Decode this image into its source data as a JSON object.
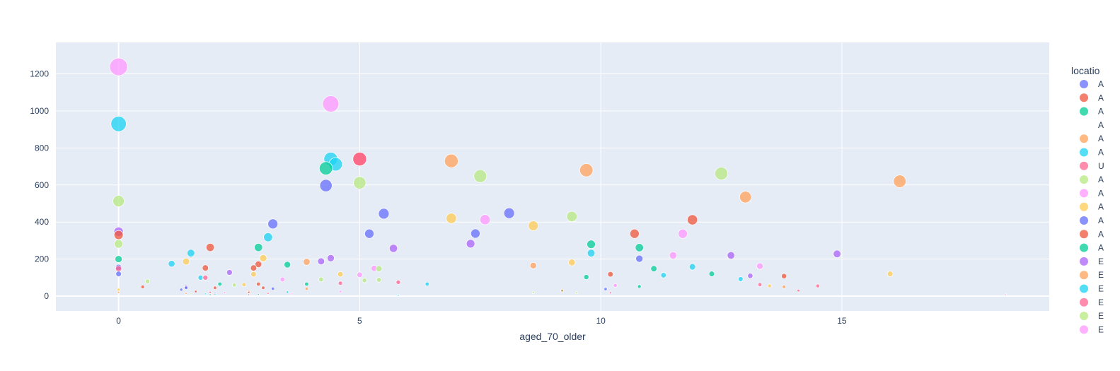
{
  "chart_data": {
    "type": "scatter",
    "xlabel": "aged_70_older",
    "ylabel": "",
    "xlim": [
      -1.3,
      19.3
    ],
    "ylim": [
      -80,
      1370
    ],
    "x_ticks": [
      0,
      5,
      10,
      15
    ],
    "y_ticks": [
      0,
      200,
      400,
      600,
      800,
      1000,
      1200
    ],
    "grid": true,
    "plot_background": "#e5ecf6",
    "legend_title": "locatio",
    "legend_placement": "right",
    "series": [
      {
        "name": "A",
        "color": "#636efa",
        "points": [
          [
            0,
            120
          ],
          [
            1.4,
            45
          ],
          [
            3.2,
            390
          ],
          [
            4.3,
            597
          ],
          [
            5.2,
            337
          ],
          [
            5.5,
            445
          ],
          [
            7.4,
            338
          ],
          [
            8.1,
            448
          ],
          [
            10.8,
            202
          ],
          [
            10.1,
            38
          ]
        ]
      },
      {
        "name": "A",
        "color": "#ef553b",
        "points": [
          [
            0,
            330
          ],
          [
            1.9,
            263
          ],
          [
            1.8,
            152
          ],
          [
            2.9,
            172
          ],
          [
            2.8,
            152
          ],
          [
            5.0,
            740
          ],
          [
            10.7,
            337
          ],
          [
            11.9,
            412
          ],
          [
            10.2,
            118
          ],
          [
            13.8,
            108
          ],
          [
            0.5,
            50
          ],
          [
            2.9,
            65
          ]
        ]
      },
      {
        "name": "A",
        "color": "#00cc96",
        "points": [
          [
            0,
            200
          ],
          [
            2.9,
            263
          ],
          [
            3.5,
            170
          ],
          [
            4.3,
            690
          ],
          [
            9.8,
            280
          ],
          [
            10.8,
            262
          ],
          [
            11.1,
            148
          ],
          [
            12.3,
            120
          ],
          [
            9.7,
            103
          ],
          [
            2.1,
            65
          ],
          [
            3.9,
            65
          ]
        ]
      },
      {
        "name": "A",
        "color": "#ffffff",
        "points": []
      },
      {
        "name": "A",
        "color": "#ffa15a",
        "points": [
          [
            0,
            20
          ],
          [
            3.9,
            185
          ],
          [
            6.9,
            730
          ],
          [
            9.7,
            680
          ],
          [
            8.6,
            165
          ],
          [
            13.0,
            535
          ],
          [
            16.2,
            620
          ],
          [
            13.8,
            50
          ]
        ]
      },
      {
        "name": "A",
        "color": "#19d3f3",
        "points": [
          [
            0,
            930
          ],
          [
            1.1,
            175
          ],
          [
            1.5,
            232
          ],
          [
            3.1,
            318
          ],
          [
            4.4,
            740
          ],
          [
            4.5,
            712
          ],
          [
            9.8,
            232
          ],
          [
            11.3,
            113
          ],
          [
            11.9,
            158
          ],
          [
            12.9,
            92
          ],
          [
            6.4,
            65
          ],
          [
            1.7,
            100
          ]
        ]
      },
      {
        "name": "U",
        "color": "#ff6692",
        "points": [
          [
            0,
            148
          ],
          [
            1.8,
            100
          ],
          [
            5.0,
            740
          ],
          [
            5.8,
            75
          ],
          [
            4.6,
            70
          ],
          [
            13.3,
            62
          ],
          [
            14.5,
            55
          ],
          [
            14.1,
            30
          ]
        ]
      },
      {
        "name": "A",
        "color": "#b6e880",
        "points": [
          [
            0,
            282
          ],
          [
            0,
            513
          ],
          [
            5.0,
            612
          ],
          [
            7.5,
            648
          ],
          [
            9.4,
            430
          ],
          [
            12.5,
            662
          ],
          [
            0.6,
            80
          ],
          [
            4.2,
            90
          ],
          [
            5.1,
            85
          ],
          [
            5.4,
            88
          ],
          [
            5.4,
            148
          ]
        ]
      },
      {
        "name": "A",
        "color": "#ff97ff",
        "points": [
          [
            0,
            1238
          ],
          [
            4.4,
            1038
          ],
          [
            7.6,
            413
          ],
          [
            11.7,
            337
          ],
          [
            11.5,
            220
          ],
          [
            13.3,
            162
          ],
          [
            5.3,
            150
          ],
          [
            5.0,
            115
          ],
          [
            3.4,
            90
          ],
          [
            10.3,
            58
          ]
        ]
      },
      {
        "name": "A",
        "color": "#fecb52",
        "points": [
          [
            0,
            35
          ],
          [
            1.4,
            187
          ],
          [
            3.0,
            205
          ],
          [
            2.8,
            118
          ],
          [
            6.9,
            420
          ],
          [
            8.6,
            380
          ],
          [
            9.4,
            182
          ],
          [
            4.6,
            118
          ],
          [
            16.0,
            120
          ],
          [
            13.5,
            55
          ],
          [
            2.6,
            62
          ]
        ]
      },
      {
        "name": "A",
        "color": "#636efa",
        "points": [
          [
            0,
            155
          ],
          [
            1.3,
            35
          ],
          [
            3.2,
            40
          ],
          [
            2.0,
            15
          ]
        ]
      },
      {
        "name": "A",
        "color": "#ef553b",
        "points": [
          [
            3.0,
            45
          ],
          [
            2.0,
            45
          ],
          [
            1.6,
            25
          ],
          [
            2.7,
            20
          ]
        ]
      },
      {
        "name": "A",
        "color": "#00cc96",
        "points": [
          [
            10.8,
            52
          ],
          [
            9.2,
            30
          ],
          [
            1.9,
            8
          ],
          [
            2.9,
            10
          ]
        ]
      },
      {
        "name": "E",
        "color": "#ab63fa",
        "points": [
          [
            0,
            348
          ],
          [
            2.3,
            128
          ],
          [
            4.2,
            188
          ],
          [
            4.4,
            205
          ],
          [
            5.7,
            258
          ],
          [
            7.3,
            283
          ],
          [
            12.7,
            220
          ],
          [
            14.9,
            228
          ],
          [
            13.1,
            110
          ],
          [
            1.4,
            50
          ]
        ]
      },
      {
        "name": "E",
        "color": "#ffa15a",
        "points": [
          [
            3.9,
            40
          ],
          [
            9.2,
            30
          ],
          [
            2.7,
            25
          ],
          [
            1.4,
            15
          ]
        ]
      },
      {
        "name": "E",
        "color": "#19d3f3",
        "points": [
          [
            1.8,
            12
          ],
          [
            5.8,
            5
          ],
          [
            2.0,
            10
          ],
          [
            3.5,
            22
          ]
        ]
      },
      {
        "name": "E",
        "color": "#ff6692",
        "points": [
          [
            2.7,
            8
          ],
          [
            3.1,
            15
          ],
          [
            1.9,
            20
          ],
          [
            10.2,
            18
          ]
        ]
      },
      {
        "name": "E",
        "color": "#b6e880",
        "points": [
          [
            2.4,
            60
          ],
          [
            8.6,
            20
          ],
          [
            9.5,
            18
          ],
          [
            1.5,
            12
          ]
        ]
      },
      {
        "name": "E",
        "color": "#ff97ff",
        "points": [
          [
            18.4,
            8
          ],
          [
            3.6,
            12
          ],
          [
            4.6,
            25
          ],
          [
            2.2,
            18
          ]
        ]
      }
    ]
  }
}
